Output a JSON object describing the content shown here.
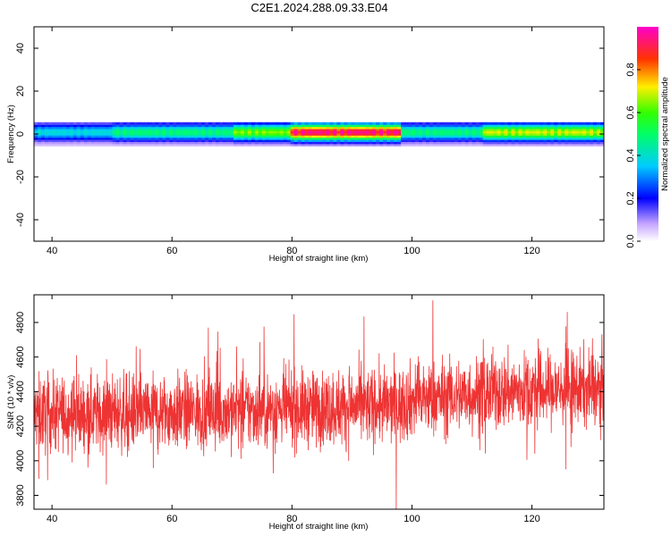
{
  "figure": {
    "title": "C2E1.2024.288.09.33.E04"
  },
  "chart_data": [
    {
      "type": "heatmap",
      "xlabel": "Height of straight line (km)",
      "ylabel": "Frequency (Hz)",
      "xlim": [
        37,
        132
      ],
      "ylim": [
        -50,
        50
      ],
      "xticks": [
        40,
        60,
        80,
        100,
        120
      ],
      "yticks": [
        -40,
        -20,
        0,
        20,
        40
      ],
      "band": {
        "center_frequency_hz": 1,
        "half_width_hz": 4,
        "segments": [
          {
            "from_km": 37,
            "to_km": 50,
            "peak_amplitude": 0.35
          },
          {
            "from_km": 50,
            "to_km": 70,
            "peak_amplitude": 0.45
          },
          {
            "from_km": 70,
            "to_km": 80,
            "peak_amplitude": 0.6
          },
          {
            "from_km": 80,
            "to_km": 98,
            "peak_amplitude": 0.9
          },
          {
            "from_km": 98,
            "to_km": 112,
            "peak_amplitude": 0.45
          },
          {
            "from_km": 112,
            "to_km": 132,
            "peak_amplitude": 0.65
          }
        ]
      },
      "colorbar": {
        "label": "Normalized spectral amplitude",
        "range": [
          0,
          1
        ],
        "ticks": [
          "0.0",
          "0.2",
          "0.4",
          "0.6",
          "0.8"
        ],
        "tick_values": [
          0,
          0.2,
          0.4,
          0.6,
          0.8
        ]
      }
    },
    {
      "type": "line",
      "color": "#ee3333",
      "xlabel": "Height of straight line (km)",
      "ylabel": "SNR (10 * v/v)",
      "xlim": [
        37,
        132
      ],
      "ylim": [
        3720,
        4960
      ],
      "xticks": [
        40,
        60,
        80,
        100,
        120
      ],
      "yticks": [
        3800,
        4000,
        4200,
        4400,
        4600,
        4800
      ],
      "noise_profile": [
        {
          "x": 37,
          "mean": 4270
        },
        {
          "x": 60,
          "mean": 4280
        },
        {
          "x": 80,
          "mean": 4300
        },
        {
          "x": 98,
          "mean": 4320
        },
        {
          "x": 100,
          "mean": 4350
        },
        {
          "x": 115,
          "mean": 4400
        },
        {
          "x": 132,
          "mean": 4420
        }
      ],
      "spread": 110,
      "max": 4950,
      "min": 3720
    }
  ]
}
